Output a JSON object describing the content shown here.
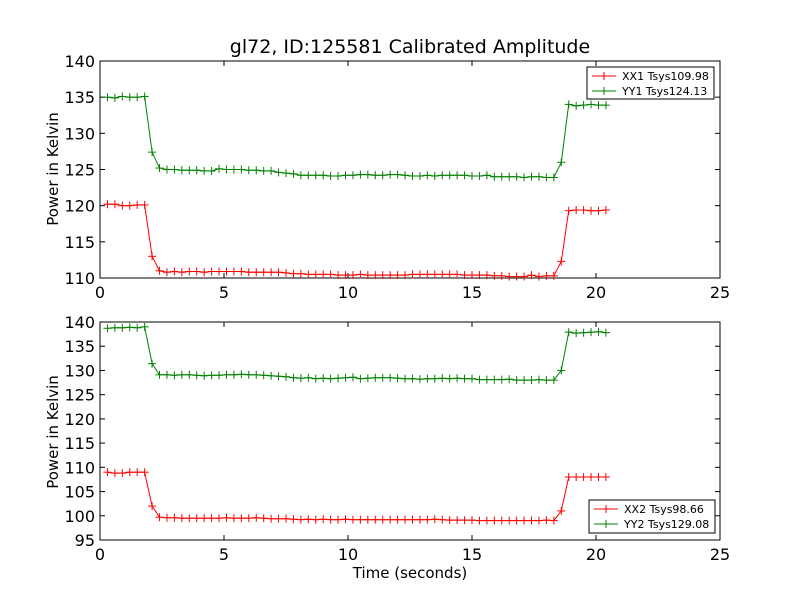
{
  "chart_data": [
    {
      "type": "line",
      "title": "gl72, ID:125581 Calibrated Amplitude",
      "xlabel": "",
      "ylabel": "Power in Kelvin",
      "xlim": [
        0,
        25
      ],
      "ylim": [
        110,
        140
      ],
      "xticks": [
        0,
        5,
        10,
        15,
        20,
        25
      ],
      "yticks": [
        110,
        115,
        120,
        125,
        130,
        135,
        140
      ],
      "grid": false,
      "legend_position": "top-right",
      "x": [
        0.3,
        0.6,
        0.9,
        1.2,
        1.5,
        1.8,
        2.1,
        2.4,
        2.7,
        3.0,
        3.3,
        3.6,
        3.9,
        4.2,
        4.5,
        4.8,
        5.1,
        5.4,
        5.7,
        6.0,
        6.3,
        6.6,
        6.9,
        7.2,
        7.5,
        7.8,
        8.1,
        8.4,
        8.7,
        9.0,
        9.3,
        9.6,
        9.9,
        10.2,
        10.5,
        10.8,
        11.1,
        11.4,
        11.7,
        12.0,
        12.3,
        12.6,
        12.9,
        13.2,
        13.5,
        13.8,
        14.1,
        14.4,
        14.7,
        15.0,
        15.3,
        15.6,
        15.9,
        16.2,
        16.5,
        16.8,
        17.1,
        17.4,
        17.7,
        18.0,
        18.3,
        18.6,
        18.9,
        19.2,
        19.5,
        19.8,
        20.1,
        20.4
      ],
      "series": [
        {
          "name": "XX1 Tsys109.98",
          "color": "#ff0000",
          "values": [
            120.2,
            120.2,
            120.0,
            120.0,
            120.1,
            120.1,
            113.0,
            111.0,
            110.8,
            110.9,
            110.8,
            110.9,
            110.9,
            110.8,
            110.9,
            110.9,
            110.9,
            110.9,
            110.9,
            110.8,
            110.8,
            110.8,
            110.8,
            110.8,
            110.7,
            110.6,
            110.6,
            110.5,
            110.5,
            110.5,
            110.5,
            110.4,
            110.4,
            110.4,
            110.5,
            110.4,
            110.4,
            110.4,
            110.4,
            110.4,
            110.4,
            110.5,
            110.5,
            110.5,
            110.5,
            110.5,
            110.5,
            110.5,
            110.4,
            110.4,
            110.4,
            110.4,
            110.3,
            110.3,
            110.2,
            110.2,
            110.2,
            110.4,
            110.2,
            110.3,
            110.3,
            112.3,
            119.3,
            119.4,
            119.4,
            119.3,
            119.3,
            119.4
          ]
        },
        {
          "name": "YY1 Tsys124.13",
          "color": "#008000",
          "values": [
            135.0,
            134.9,
            135.1,
            135.0,
            135.0,
            135.1,
            127.4,
            125.2,
            125.0,
            125.0,
            124.9,
            124.9,
            124.9,
            124.8,
            124.8,
            125.1,
            125.0,
            125.0,
            125.0,
            124.9,
            124.9,
            124.8,
            124.8,
            124.6,
            124.5,
            124.4,
            124.2,
            124.2,
            124.2,
            124.2,
            124.1,
            124.1,
            124.2,
            124.2,
            124.3,
            124.3,
            124.2,
            124.2,
            124.3,
            124.3,
            124.2,
            124.1,
            124.1,
            124.2,
            124.1,
            124.2,
            124.2,
            124.2,
            124.2,
            124.1,
            124.1,
            124.2,
            124.0,
            124.0,
            124.0,
            124.0,
            123.9,
            124.0,
            124.0,
            123.9,
            123.9,
            126.0,
            134.0,
            133.8,
            133.9,
            134.0,
            133.9,
            133.9
          ]
        }
      ]
    },
    {
      "type": "line",
      "title": "",
      "xlabel": "Time (seconds)",
      "ylabel": "Power in Kelvin",
      "xlim": [
        0,
        25
      ],
      "ylim": [
        95,
        140
      ],
      "xticks": [
        0,
        5,
        10,
        15,
        20,
        25
      ],
      "yticks": [
        95,
        100,
        105,
        110,
        115,
        120,
        125,
        130,
        135,
        140
      ],
      "grid": false,
      "legend_position": "bottom-right",
      "x": [
        0.3,
        0.6,
        0.9,
        1.2,
        1.5,
        1.8,
        2.1,
        2.4,
        2.7,
        3.0,
        3.3,
        3.6,
        3.9,
        4.2,
        4.5,
        4.8,
        5.1,
        5.4,
        5.7,
        6.0,
        6.3,
        6.6,
        6.9,
        7.2,
        7.5,
        7.8,
        8.1,
        8.4,
        8.7,
        9.0,
        9.3,
        9.6,
        9.9,
        10.2,
        10.5,
        10.8,
        11.1,
        11.4,
        11.7,
        12.0,
        12.3,
        12.6,
        12.9,
        13.2,
        13.5,
        13.8,
        14.1,
        14.4,
        14.7,
        15.0,
        15.3,
        15.6,
        15.9,
        16.2,
        16.5,
        16.8,
        17.1,
        17.4,
        17.7,
        18.0,
        18.3,
        18.6,
        18.9,
        19.2,
        19.5,
        19.8,
        20.1,
        20.4
      ],
      "series": [
        {
          "name": "XX2 Tsys98.66",
          "color": "#ff0000",
          "values": [
            109.0,
            108.8,
            108.8,
            109.0,
            109.0,
            109.0,
            102.0,
            99.7,
            99.6,
            99.6,
            99.5,
            99.5,
            99.5,
            99.5,
            99.5,
            99.5,
            99.6,
            99.5,
            99.5,
            99.5,
            99.6,
            99.5,
            99.4,
            99.4,
            99.4,
            99.3,
            99.2,
            99.3,
            99.2,
            99.3,
            99.2,
            99.2,
            99.3,
            99.2,
            99.2,
            99.2,
            99.2,
            99.2,
            99.2,
            99.2,
            99.2,
            99.2,
            99.2,
            99.2,
            99.3,
            99.2,
            99.1,
            99.1,
            99.1,
            99.1,
            99.0,
            99.0,
            99.0,
            99.0,
            99.0,
            99.0,
            99.0,
            99.0,
            99.0,
            99.1,
            99.0,
            101.0,
            108.0,
            108.0,
            108.0,
            108.0,
            108.0,
            108.0
          ]
        },
        {
          "name": "YY2 Tsys129.08",
          "color": "#008000",
          "values": [
            138.7,
            138.8,
            138.8,
            138.9,
            138.8,
            139.0,
            131.4,
            129.1,
            129.1,
            129.0,
            129.1,
            129.1,
            129.0,
            128.9,
            129.0,
            129.0,
            129.1,
            129.1,
            129.2,
            129.1,
            129.1,
            129.0,
            128.9,
            128.8,
            128.7,
            128.5,
            128.4,
            128.5,
            128.3,
            128.4,
            128.3,
            128.4,
            128.5,
            128.6,
            128.3,
            128.4,
            128.5,
            128.5,
            128.5,
            128.4,
            128.3,
            128.3,
            128.2,
            128.3,
            128.3,
            128.4,
            128.3,
            128.4,
            128.3,
            128.3,
            128.1,
            128.1,
            128.1,
            128.1,
            128.2,
            128.0,
            128.0,
            128.0,
            128.1,
            128.0,
            128.0,
            130.0,
            137.9,
            137.7,
            137.8,
            137.9,
            138.0,
            137.8
          ]
        }
      ]
    }
  ]
}
